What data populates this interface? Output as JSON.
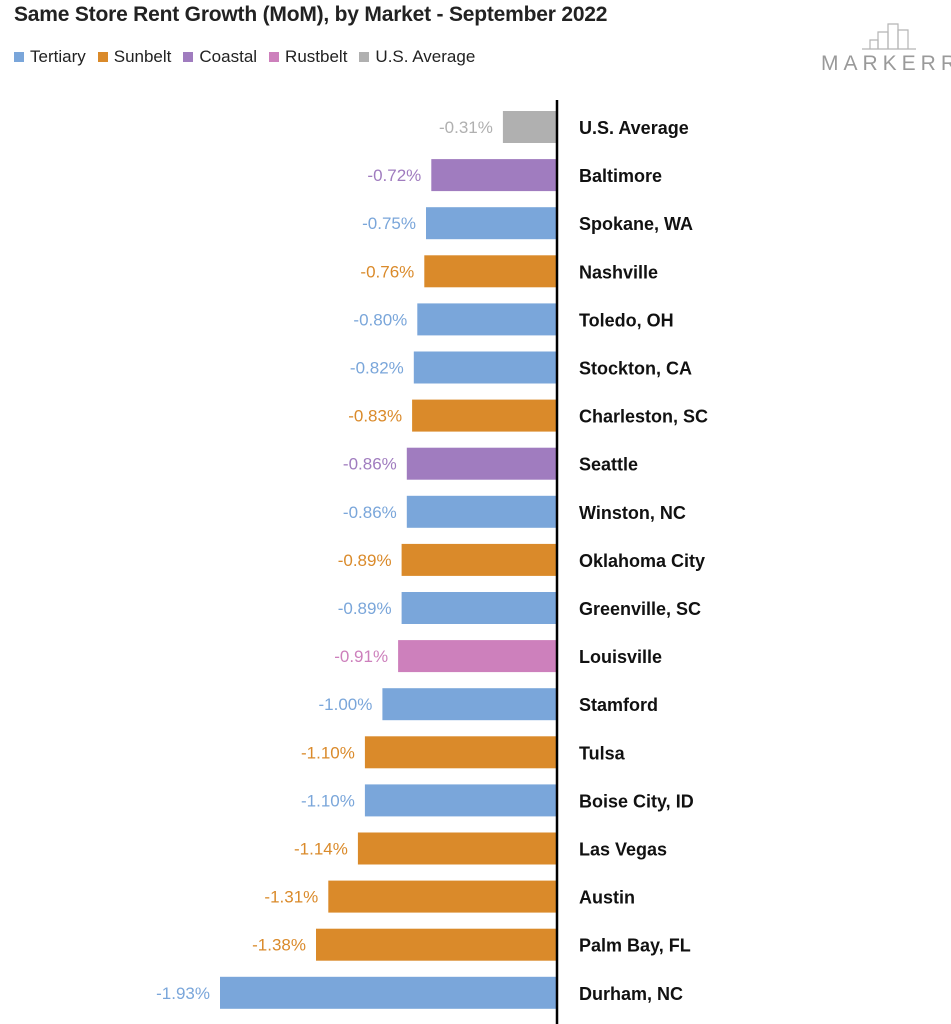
{
  "chart_data": {
    "type": "bar",
    "orientation": "horizontal",
    "title": "Same Store Rent Growth (MoM), by Market - September 2022",
    "value_format": "percent_2dp",
    "xlim": [
      -1.93,
      0
    ],
    "legend": [
      {
        "label": "Tertiary",
        "color": "#7aa6da"
      },
      {
        "label": "Sunbelt",
        "color": "#da8a2a"
      },
      {
        "label": "Coastal",
        "color": "#a07cbf"
      },
      {
        "label": "Rustbelt",
        "color": "#cd80bc"
      },
      {
        "label": "U.S. Average",
        "color": "#b0b0b0"
      }
    ],
    "bars": [
      {
        "label": "U.S. Average",
        "value": -0.31,
        "data_label": "-0.31%",
        "group": "U.S. Average"
      },
      {
        "label": "Baltimore",
        "value": -0.72,
        "data_label": "-0.72%",
        "group": "Coastal"
      },
      {
        "label": "Spokane, WA",
        "value": -0.75,
        "data_label": "-0.75%",
        "group": "Tertiary"
      },
      {
        "label": "Nashville",
        "value": -0.76,
        "data_label": "-0.76%",
        "group": "Sunbelt"
      },
      {
        "label": "Toledo, OH",
        "value": -0.8,
        "data_label": "-0.80%",
        "group": "Tertiary"
      },
      {
        "label": "Stockton, CA",
        "value": -0.82,
        "data_label": "-0.82%",
        "group": "Tertiary"
      },
      {
        "label": "Charleston, SC",
        "value": -0.83,
        "data_label": "-0.83%",
        "group": "Sunbelt"
      },
      {
        "label": "Seattle",
        "value": -0.86,
        "data_label": "-0.86%",
        "group": "Coastal"
      },
      {
        "label": "Winston, NC",
        "value": -0.86,
        "data_label": "-0.86%",
        "group": "Tertiary"
      },
      {
        "label": "Oklahoma City",
        "value": -0.89,
        "data_label": "-0.89%",
        "group": "Sunbelt"
      },
      {
        "label": "Greenville, SC",
        "value": -0.89,
        "data_label": "-0.89%",
        "group": "Tertiary"
      },
      {
        "label": "Louisville",
        "value": -0.91,
        "data_label": "-0.91%",
        "group": "Rustbelt"
      },
      {
        "label": "Stamford",
        "value": -1.0,
        "data_label": "-1.00%",
        "group": "Tertiary"
      },
      {
        "label": "Tulsa",
        "value": -1.1,
        "data_label": "-1.10%",
        "group": "Sunbelt"
      },
      {
        "label": "Boise City, ID",
        "value": -1.1,
        "data_label": "-1.10%",
        "group": "Tertiary"
      },
      {
        "label": "Las Vegas",
        "value": -1.14,
        "data_label": "-1.14%",
        "group": "Sunbelt"
      },
      {
        "label": "Austin",
        "value": -1.31,
        "data_label": "-1.31%",
        "group": "Sunbelt"
      },
      {
        "label": "Palm Bay, FL",
        "value": -1.38,
        "data_label": "-1.38%",
        "group": "Sunbelt"
      },
      {
        "label": "Durham, NC",
        "value": -1.93,
        "data_label": "-1.93%",
        "group": "Tertiary"
      }
    ]
  },
  "brand": {
    "logo_text": "MARKERR",
    "logo_color": "#9a9a9a"
  },
  "colors": {
    "axis": "#000000",
    "title": "#222222",
    "category_label": "#111111"
  }
}
